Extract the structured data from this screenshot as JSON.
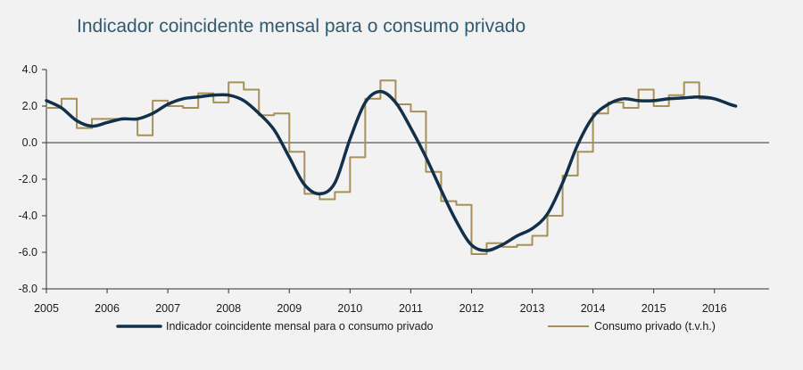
{
  "chart_data": {
    "type": "line",
    "title": "Indicador coincidente mensal para o consumo privado",
    "xlabel": "",
    "ylabel": "",
    "xlim": [
      2005,
      2016.9
    ],
    "ylim": [
      -8,
      4
    ],
    "y_ticks": [
      "4.0",
      "2.0",
      "0.0",
      "-2.0",
      "-4.0",
      "-6.0",
      "-8.0"
    ],
    "x_ticks": [
      "2005",
      "2006",
      "2007",
      "2008",
      "2009",
      "2010",
      "2011",
      "2012",
      "2013",
      "2014",
      "2015",
      "2016"
    ],
    "legend_position": "bottom",
    "grid": false,
    "series": [
      {
        "name": "Indicador coincidente mensal para o consumo privado",
        "color": "#12304a",
        "style": "smooth",
        "points": [
          [
            2005.0,
            2.3
          ],
          [
            2005.25,
            1.9
          ],
          [
            2005.5,
            1.2
          ],
          [
            2005.75,
            0.9
          ],
          [
            2006.0,
            1.1
          ],
          [
            2006.25,
            1.3
          ],
          [
            2006.5,
            1.3
          ],
          [
            2006.75,
            1.6
          ],
          [
            2007.0,
            2.1
          ],
          [
            2007.25,
            2.4
          ],
          [
            2007.5,
            2.5
          ],
          [
            2007.75,
            2.6
          ],
          [
            2008.0,
            2.6
          ],
          [
            2008.25,
            2.3
          ],
          [
            2008.5,
            1.6
          ],
          [
            2008.75,
            0.7
          ],
          [
            2009.0,
            -0.8
          ],
          [
            2009.25,
            -2.3
          ],
          [
            2009.5,
            -2.8
          ],
          [
            2009.75,
            -2.2
          ],
          [
            2010.0,
            0.2
          ],
          [
            2010.25,
            2.2
          ],
          [
            2010.5,
            2.8
          ],
          [
            2010.75,
            2.2
          ],
          [
            2011.0,
            0.8
          ],
          [
            2011.25,
            -0.8
          ],
          [
            2011.5,
            -2.6
          ],
          [
            2011.75,
            -4.3
          ],
          [
            2012.0,
            -5.6
          ],
          [
            2012.25,
            -5.9
          ],
          [
            2012.5,
            -5.6
          ],
          [
            2012.75,
            -5.1
          ],
          [
            2013.0,
            -4.7
          ],
          [
            2013.25,
            -3.9
          ],
          [
            2013.5,
            -2.2
          ],
          [
            2013.75,
            -0.1
          ],
          [
            2014.0,
            1.4
          ],
          [
            2014.25,
            2.1
          ],
          [
            2014.5,
            2.4
          ],
          [
            2014.75,
            2.3
          ],
          [
            2015.0,
            2.3
          ],
          [
            2015.25,
            2.4
          ],
          [
            2015.5,
            2.45
          ],
          [
            2015.75,
            2.5
          ],
          [
            2016.0,
            2.4
          ],
          [
            2016.25,
            2.1
          ],
          [
            2016.35,
            2.0
          ]
        ]
      },
      {
        "name": "Consumo privado (t.v.h.)",
        "color": "#a8905a",
        "style": "step",
        "points": [
          [
            2005.0,
            1.9
          ],
          [
            2005.25,
            2.4
          ],
          [
            2005.5,
            0.8
          ],
          [
            2005.75,
            1.3
          ],
          [
            2006.0,
            1.3
          ],
          [
            2006.25,
            1.3
          ],
          [
            2006.5,
            0.4
          ],
          [
            2006.75,
            2.3
          ],
          [
            2007.0,
            2.0
          ],
          [
            2007.25,
            1.9
          ],
          [
            2007.5,
            2.7
          ],
          [
            2007.75,
            2.2
          ],
          [
            2008.0,
            3.3
          ],
          [
            2008.25,
            2.9
          ],
          [
            2008.5,
            1.5
          ],
          [
            2008.75,
            1.6
          ],
          [
            2009.0,
            -0.5
          ],
          [
            2009.25,
            -2.8
          ],
          [
            2009.5,
            -3.1
          ],
          [
            2009.75,
            -2.7
          ],
          [
            2010.0,
            -0.8
          ],
          [
            2010.25,
            2.4
          ],
          [
            2010.5,
            3.4
          ],
          [
            2010.75,
            2.1
          ],
          [
            2011.0,
            1.7
          ],
          [
            2011.25,
            -1.6
          ],
          [
            2011.5,
            -3.2
          ],
          [
            2011.75,
            -3.4
          ],
          [
            2012.0,
            -6.1
          ],
          [
            2012.25,
            -5.5
          ],
          [
            2012.5,
            -5.7
          ],
          [
            2012.75,
            -5.6
          ],
          [
            2013.0,
            -5.1
          ],
          [
            2013.25,
            -4.0
          ],
          [
            2013.5,
            -1.8
          ],
          [
            2013.75,
            -0.5
          ],
          [
            2014.0,
            1.6
          ],
          [
            2014.25,
            2.2
          ],
          [
            2014.5,
            1.9
          ],
          [
            2014.75,
            2.9
          ],
          [
            2015.0,
            2.0
          ],
          [
            2015.25,
            2.6
          ],
          [
            2015.5,
            3.3
          ],
          [
            2015.75,
            2.4
          ]
        ],
        "end_x": 2016.0
      }
    ]
  }
}
